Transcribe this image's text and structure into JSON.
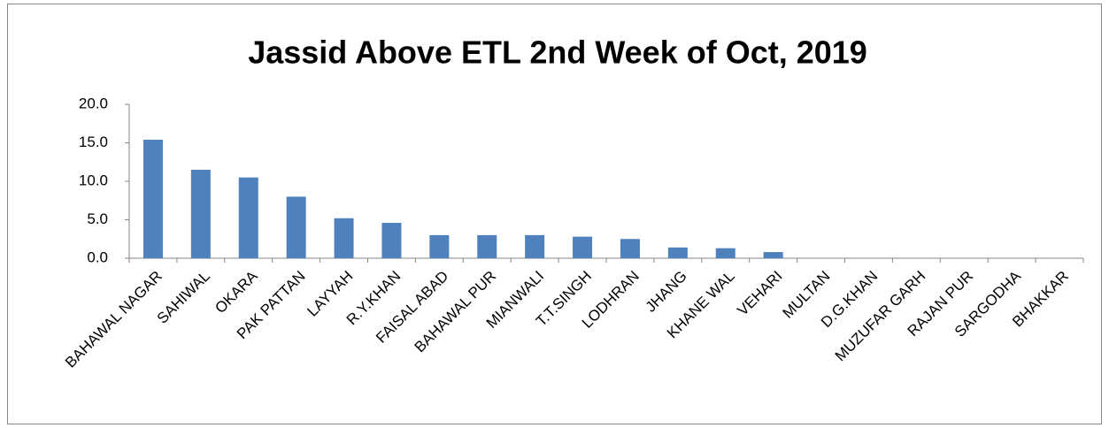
{
  "chart_data": {
    "type": "bar",
    "title": "Jassid Above ETL 2nd Week of Oct, 2019",
    "categories": [
      "BAHAWAL NAGAR",
      "SAHIWAL",
      "OKARA",
      "PAK PATTAN",
      "LAYYAH",
      "R.Y.KHAN",
      "FAISAL ABAD",
      "BAHAWAL PUR",
      "MIANWALI",
      "T.T.SINGH",
      "LODHRAN",
      "JHANG",
      "KHANE WAL",
      "VEHARI",
      "MULTAN",
      "D.G.KHAN",
      "MUZUFAR GARH",
      "RAJAN PUR",
      "SARGODHA",
      "BHAKKAR"
    ],
    "values": [
      15.4,
      11.5,
      10.5,
      8.0,
      5.2,
      4.6,
      3.0,
      3.0,
      3.0,
      2.8,
      2.5,
      1.4,
      1.3,
      0.8,
      0,
      0,
      0,
      0,
      0,
      0
    ],
    "color": "#4f81bd",
    "ylim": [
      0,
      20
    ],
    "yticks": [
      {
        "value": 0,
        "label": "0.0"
      },
      {
        "value": 5,
        "label": "5.0"
      },
      {
        "value": 10,
        "label": "10.0"
      },
      {
        "value": 15,
        "label": "15.0"
      },
      {
        "value": 20,
        "label": "20.0"
      }
    ],
    "grid": false
  }
}
